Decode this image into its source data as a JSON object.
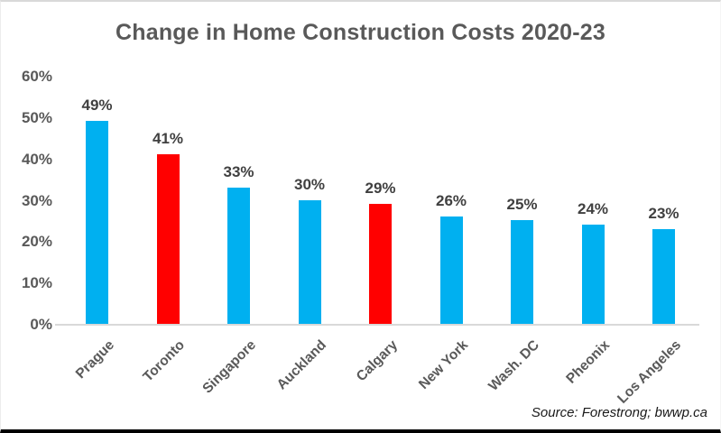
{
  "chart_data": {
    "type": "bar",
    "title": "Change in Home Construction Costs 2020-23",
    "categories": [
      "Prague",
      "Toronto",
      "Singapore",
      "Auckland",
      "Calgary",
      "New York",
      "Wash. DC",
      "Pheonix",
      "Los Angeles"
    ],
    "values": [
      49,
      41,
      33,
      30,
      29,
      26,
      25,
      24,
      23
    ],
    "data_labels": [
      "49%",
      "41%",
      "33%",
      "30%",
      "29%",
      "26%",
      "25%",
      "24%",
      "23%"
    ],
    "bar_colors": [
      "#00B0F0",
      "#FF0000",
      "#00B0F0",
      "#00B0F0",
      "#FF0000",
      "#00B0F0",
      "#00B0F0",
      "#00B0F0",
      "#00B0F0"
    ],
    "default_color": "#00B0F0",
    "highlight_color": "#FF0000",
    "highlighted_categories": [
      "Toronto",
      "Calgary"
    ],
    "yticks": {
      "labels": [
        "0%",
        "10%",
        "20%",
        "30%",
        "40%",
        "50%",
        "60%"
      ],
      "values": [
        0,
        10,
        20,
        30,
        40,
        50,
        60
      ]
    },
    "ylim": [
      0,
      60
    ],
    "xlabel": "",
    "ylabel": "",
    "grid": false,
    "legend": "none",
    "title_color": "#595959",
    "axis_line_color": "#d9d9d9",
    "label_color": "#404040",
    "source_note": "Source: Forestrong; bwwp.ca"
  }
}
